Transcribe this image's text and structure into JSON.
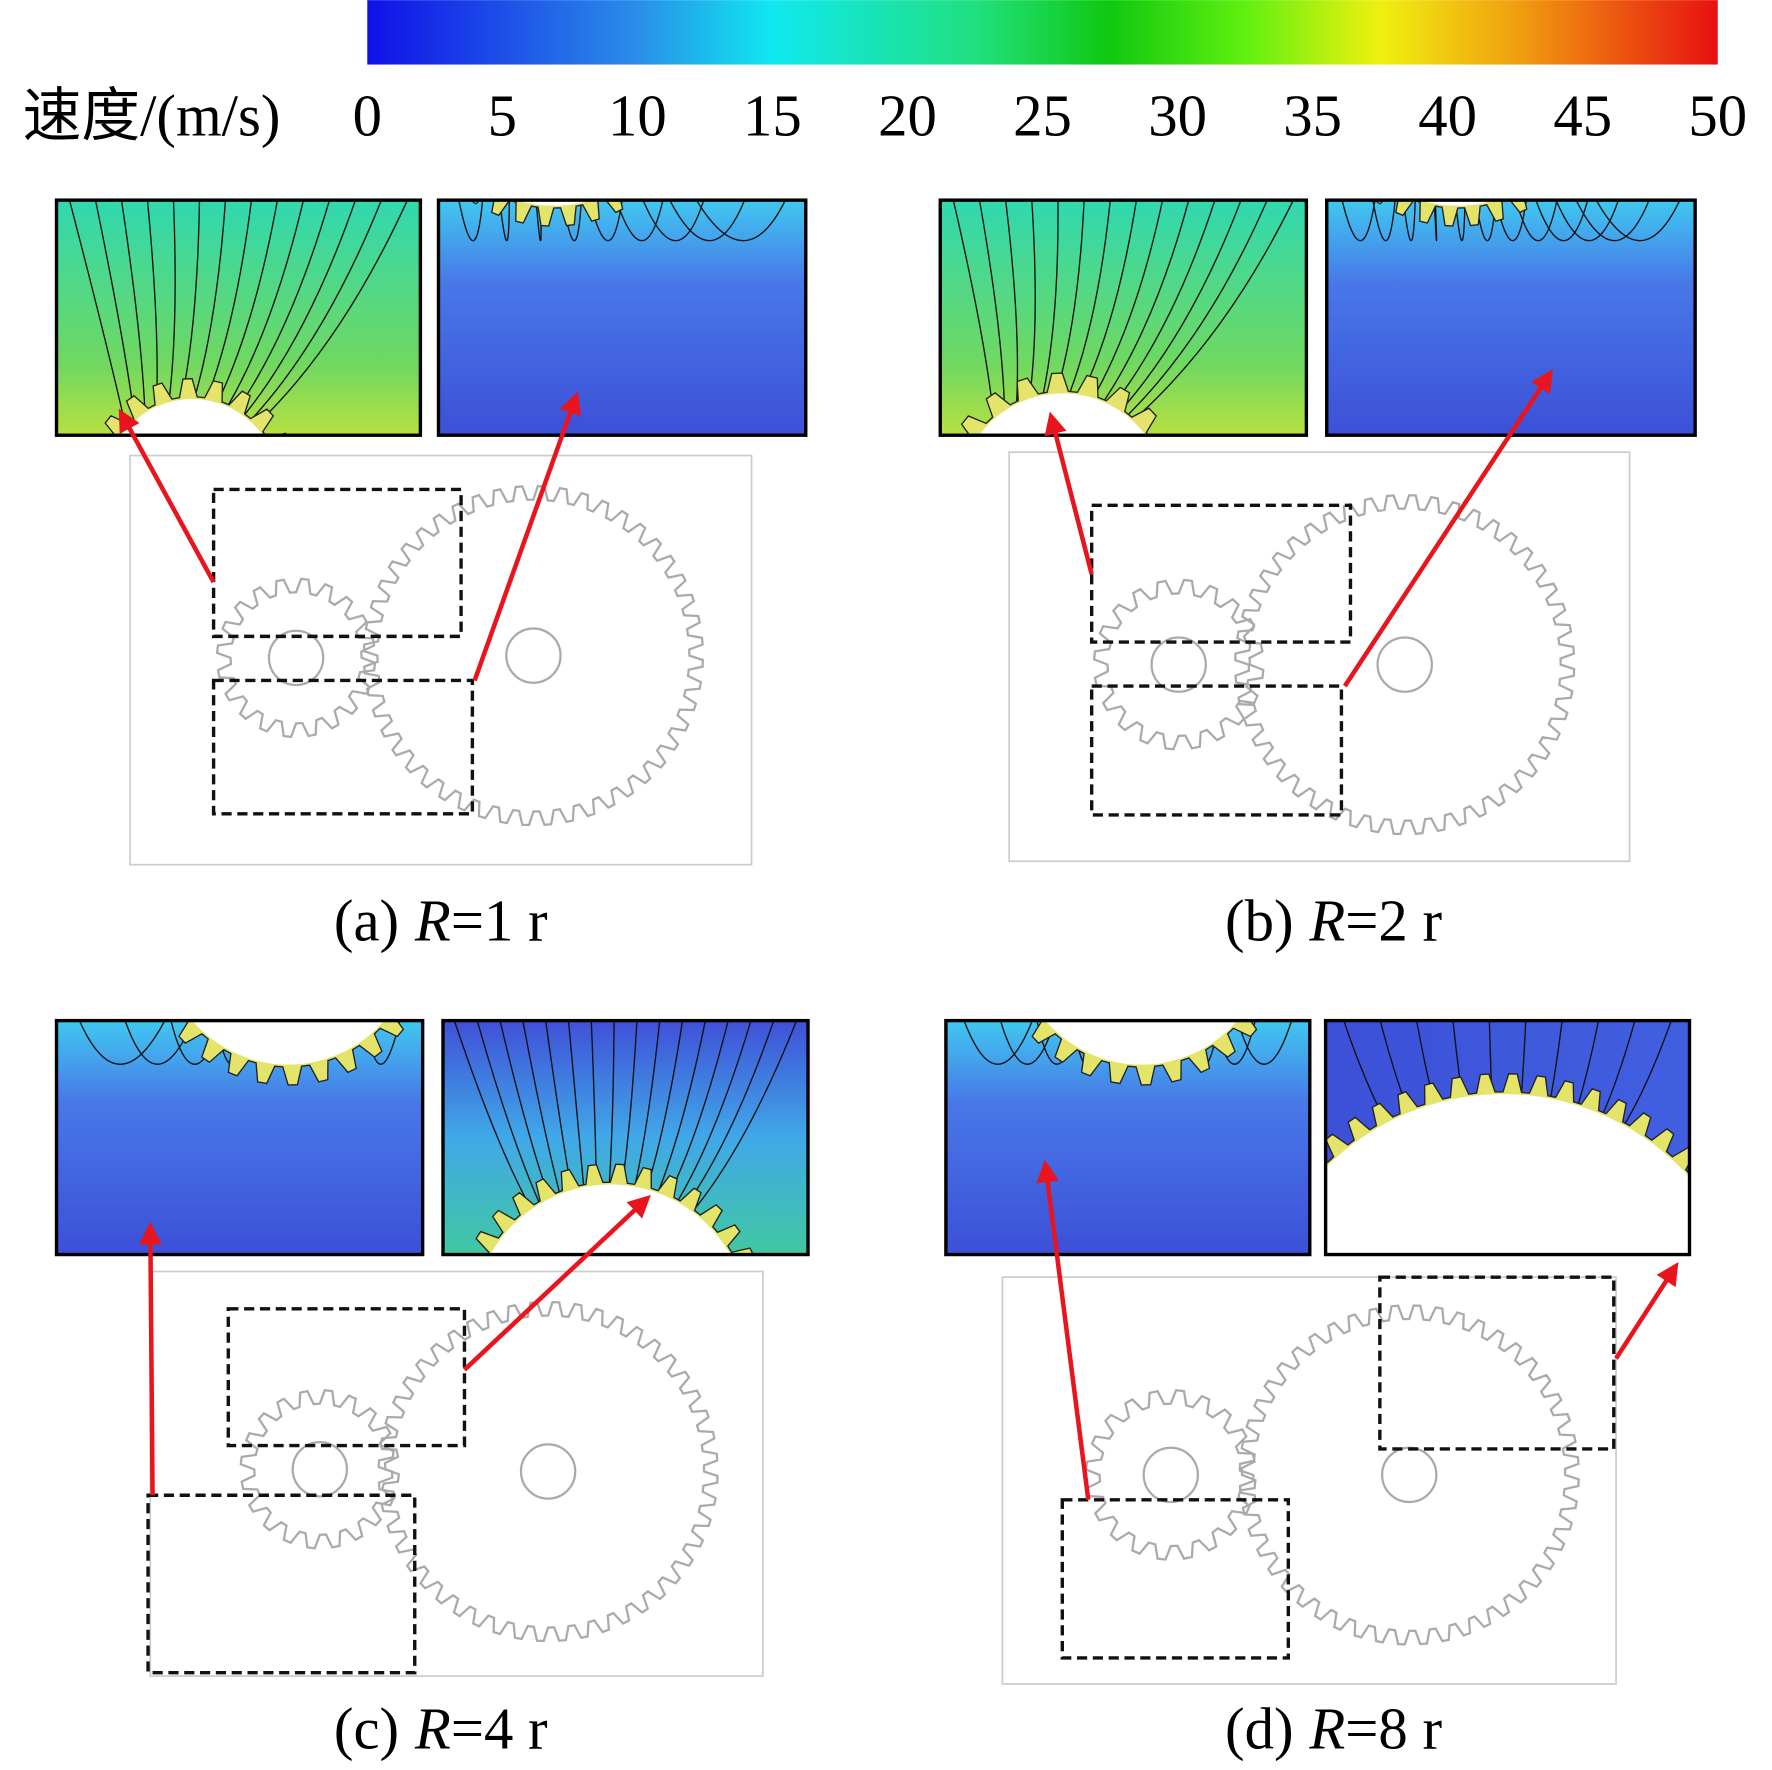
{
  "colorbar": {
    "label": "速度/(m/s)",
    "lim": [
      0,
      50
    ],
    "ticks": [
      0,
      5,
      10,
      15,
      20,
      25,
      30,
      35,
      40,
      45,
      50
    ]
  },
  "panels": [
    {
      "tag": "(a)",
      "symbol": "R",
      "value": "=1 r"
    },
    {
      "tag": "(b)",
      "symbol": "R",
      "value": "=2 r"
    },
    {
      "tag": "(c)",
      "symbol": "R",
      "value": "=4 r"
    },
    {
      "tag": "(d)",
      "symbol": "R",
      "value": "=8 r"
    }
  ]
}
